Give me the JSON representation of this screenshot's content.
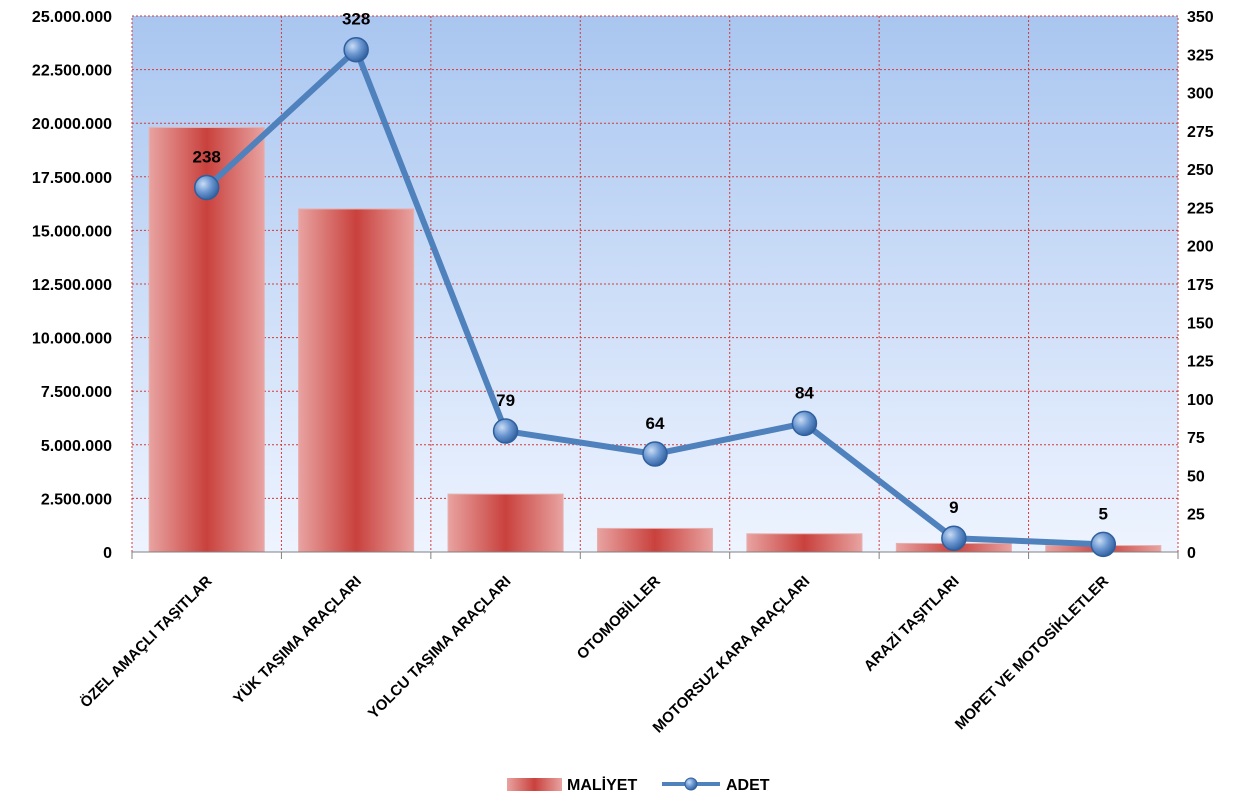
{
  "chart_data": {
    "type": "bar",
    "categories": [
      "ÖZEL AMAÇLI TAŞITLAR",
      "YÜK TAŞIMA ARAÇLARI",
      "YOLCU TAŞIMA ARAÇLARI",
      "OTOMOBİLLER",
      "MOTORSUZ KARA ARAÇLARI",
      "ARAZİ TAŞITLARI",
      "MOPET VE MOTOSİKLETLER"
    ],
    "series": [
      {
        "name": "MALİYET",
        "type": "bar",
        "axis": "left",
        "values": [
          19800000,
          16000000,
          2700000,
          1100000,
          850000,
          400000,
          300000
        ],
        "color": "#d9534f"
      },
      {
        "name": "ADET",
        "type": "line",
        "axis": "right",
        "values": [
          238,
          328,
          79,
          64,
          84,
          9,
          5
        ],
        "data_labels": [
          "238",
          "328",
          "79",
          "64",
          "84",
          "9",
          "5"
        ],
        "color": "#4f81bd"
      }
    ],
    "y_left": {
      "range": [
        0,
        25000000
      ],
      "ticks": [
        "0",
        "2.500.000",
        "5.000.000",
        "7.500.000",
        "10.000.000",
        "12.500.000",
        "15.000.000",
        "17.500.000",
        "20.000.000",
        "22.500.000",
        "25.000.000"
      ]
    },
    "y_right": {
      "range": [
        0,
        350
      ],
      "ticks": [
        "0",
        "25",
        "50",
        "75",
        "100",
        "125",
        "150",
        "175",
        "200",
        "225",
        "250",
        "275",
        "300",
        "325",
        "350"
      ]
    },
    "grid": true,
    "legend_position": "bottom",
    "colors": {
      "plot_top": "#a9c6f0",
      "plot_bottom": "#eef4ff",
      "grid": "#d23b3b",
      "bar": "#d9534f",
      "line": "#4f81bd"
    }
  }
}
